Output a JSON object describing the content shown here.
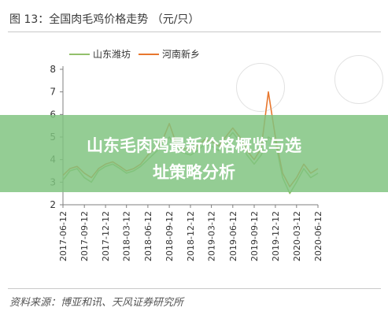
{
  "figure": {
    "title": "图 13：全国肉毛鸡价格走势 （元/只）",
    "source": "资料来源：博亚和讯、天风证券研究所"
  },
  "banner": {
    "line1": "山东毛肉鸡最新价格概览与选",
    "line2": "址策略分析"
  },
  "colors": {
    "shandong": "#92c06b",
    "henan": "#e8772e",
    "banner": "#7fc47f"
  },
  "chart_data": {
    "type": "line",
    "title": "全国肉毛鸡价格走势 （元/只）",
    "xlabel": "",
    "ylabel": "",
    "ylim": [
      2,
      8
    ],
    "yticks": [
      2,
      3,
      4,
      5,
      6,
      7,
      8
    ],
    "xticks": [
      "2017-06-12",
      "2017-09-12",
      "2017-12-12",
      "2018-03-12",
      "2018-06-12",
      "2018-09-12",
      "2018-12-12",
      "2019-03-12",
      "2019-06-12",
      "2019-09-12",
      "2019-12-12",
      "2020-03-12",
      "2020-06-12"
    ],
    "legend_position": "top-left",
    "grid": false,
    "series": [
      {
        "name": "山东潍坊",
        "color": "#92c06b",
        "x": [
          "2017-06-12",
          "2017-07-12",
          "2017-08-12",
          "2017-09-12",
          "2017-10-12",
          "2017-11-12",
          "2017-12-12",
          "2018-01-12",
          "2018-02-12",
          "2018-03-12",
          "2018-04-12",
          "2018-05-12",
          "2018-06-12",
          "2018-07-12",
          "2018-08-12",
          "2018-09-12",
          "2018-10-12",
          "2018-11-12",
          "2018-12-12",
          "2019-01-12",
          "2019-02-12",
          "2019-03-12",
          "2019-04-12",
          "2019-05-12",
          "2019-06-12",
          "2019-07-12",
          "2019-08-12",
          "2019-09-12",
          "2019-10-12",
          "2019-11-12",
          "2019-12-12",
          "2020-01-12",
          "2020-02-12",
          "2020-03-12",
          "2020-04-12",
          "2020-05-12",
          "2020-06-12"
        ],
        "values": [
          3.1,
          3.5,
          3.6,
          3.2,
          3.0,
          3.5,
          3.7,
          3.8,
          3.6,
          3.4,
          3.5,
          3.7,
          4.0,
          4.3,
          4.6,
          5.0,
          4.5,
          4.3,
          4.2,
          4.4,
          4.7,
          4.6,
          4.4,
          4.8,
          5.2,
          4.8,
          4.2,
          3.8,
          4.2,
          5.0,
          4.8,
          3.2,
          2.5,
          3.0,
          3.6,
          3.2,
          3.4
        ]
      },
      {
        "name": "河南新乡",
        "color": "#e8772e",
        "x": [
          "2017-06-12",
          "2017-07-12",
          "2017-08-12",
          "2017-09-12",
          "2017-10-12",
          "2017-11-12",
          "2017-12-12",
          "2018-01-12",
          "2018-02-12",
          "2018-03-12",
          "2018-04-12",
          "2018-05-12",
          "2018-06-12",
          "2018-07-12",
          "2018-08-12",
          "2018-09-12",
          "2018-10-12",
          "2018-11-12",
          "2018-12-12",
          "2019-01-12",
          "2019-02-12",
          "2019-03-12",
          "2019-04-12",
          "2019-05-12",
          "2019-06-12",
          "2019-07-12",
          "2019-08-12",
          "2019-09-12",
          "2019-10-12",
          "2019-11-12",
          "2019-12-12",
          "2020-01-12",
          "2020-02-12",
          "2020-03-12",
          "2020-04-12",
          "2020-05-12",
          "2020-06-12"
        ],
        "values": [
          3.3,
          3.6,
          3.7,
          3.4,
          3.2,
          3.6,
          3.8,
          3.9,
          3.7,
          3.5,
          3.6,
          3.8,
          4.2,
          4.5,
          4.8,
          5.6,
          4.7,
          4.5,
          4.4,
          4.6,
          4.9,
          4.8,
          4.6,
          5.0,
          5.4,
          5.0,
          4.4,
          4.0,
          4.5,
          7.0,
          5.0,
          3.4,
          2.8,
          3.2,
          3.8,
          3.4,
          3.6
        ]
      }
    ]
  }
}
